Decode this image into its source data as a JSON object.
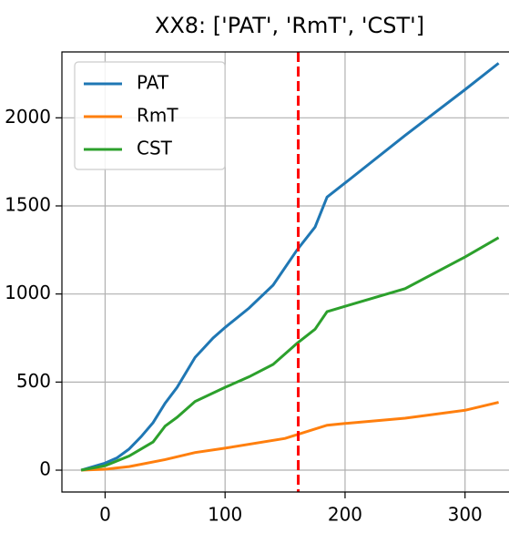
{
  "chart_data": {
    "type": "line",
    "title": "XX8: ['PAT', 'RmT', 'CST']",
    "series": [
      {
        "name": "PAT",
        "color": "#1f77b4",
        "x": [
          -20,
          0,
          10,
          20,
          30,
          40,
          50,
          60,
          75,
          90,
          100,
          120,
          140,
          160,
          175,
          185,
          200,
          250,
          300,
          328
        ],
        "values": [
          0,
          40,
          70,
          120,
          190,
          270,
          380,
          470,
          640,
          750,
          810,
          920,
          1050,
          1250,
          1380,
          1550,
          1630,
          1900,
          2160,
          2310
        ]
      },
      {
        "name": "RmT",
        "color": "#ff7f0e",
        "x": [
          -20,
          0,
          20,
          50,
          75,
          100,
          150,
          185,
          200,
          250,
          300,
          328
        ],
        "values": [
          0,
          5,
          20,
          60,
          100,
          125,
          180,
          255,
          265,
          295,
          340,
          385
        ]
      },
      {
        "name": "CST",
        "color": "#2ca02c",
        "x": [
          -20,
          0,
          20,
          40,
          50,
          60,
          75,
          100,
          120,
          140,
          160,
          175,
          185,
          200,
          250,
          300,
          328
        ],
        "values": [
          0,
          25,
          80,
          160,
          250,
          300,
          390,
          470,
          530,
          600,
          720,
          800,
          900,
          930,
          1030,
          1210,
          1320
        ]
      }
    ],
    "vline": {
      "x": 161,
      "color": "#ff0000"
    },
    "xlim": [
      -36,
      345
    ],
    "xticks": [
      0,
      100,
      200,
      300
    ],
    "ylim": [
      -124,
      2374
    ],
    "yticks": [
      0,
      500,
      1000,
      1500,
      2000
    ],
    "grid": true,
    "legend": "upper left"
  }
}
